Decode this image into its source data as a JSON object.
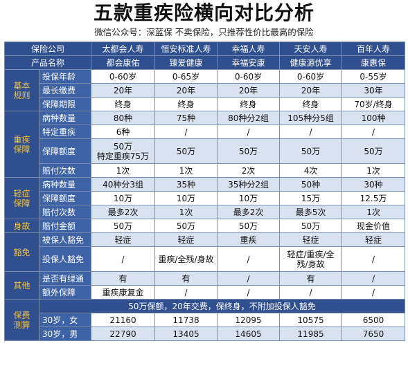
{
  "title": "五款重疾险横向对比分析",
  "subtitle": "微信公众号：深蓝保  不卖保险，只推荐性价比最高的保险",
  "header": {
    "company_label": "保险公司",
    "product_label": "产品名称",
    "companies": [
      "太都会人寿",
      "恒安标准人寿",
      "幸福人寿",
      "天安人寿",
      "百年人寿"
    ],
    "products": [
      "都会康佑",
      "臻爱健康",
      "幸福安康",
      "健康源优享",
      "康惠保"
    ]
  },
  "sections": [
    {
      "category": "基本\n规则",
      "rows": [
        {
          "item": "投保年龄",
          "values": [
            "0-60岁",
            "0-65岁",
            "0-60岁",
            "0-60岁",
            "0-55岁"
          ]
        },
        {
          "item": "最长缴费",
          "values": [
            "20年",
            "20年",
            "20年",
            "20年",
            "30年"
          ]
        },
        {
          "item": "保障期限",
          "values": [
            "终身",
            "终身",
            "终身",
            "终身",
            "70岁/终身"
          ]
        }
      ]
    },
    {
      "category": "重疾\n保障",
      "rows": [
        {
          "item": "病种数量",
          "values": [
            "80种",
            "75种",
            "80种分2组",
            "105种分5组",
            "100种"
          ]
        },
        {
          "item": "特定重疾",
          "values": [
            "6种",
            "/",
            "/",
            "/",
            "/"
          ]
        },
        {
          "item": "保障额度",
          "values": [
            "50万\n特定重疾75万",
            "50万",
            "50万",
            "50万",
            "50万"
          ]
        },
        {
          "item": "赔付次数",
          "values": [
            "1次",
            "1次",
            "2次",
            "4次",
            "1次"
          ]
        }
      ]
    },
    {
      "category": "轻症\n保障",
      "rows": [
        {
          "item": "病种数量",
          "values": [
            "40种分3组",
            "35种",
            "35种分2组",
            "50种",
            "30种"
          ]
        },
        {
          "item": "保障额度",
          "values": [
            "10万",
            "10万",
            "10万",
            "15万",
            "12.5万"
          ]
        },
        {
          "item": "赔付次数",
          "values": [
            "最多2次",
            "1次",
            "最多2次",
            "最多5次",
            "1次"
          ]
        }
      ]
    },
    {
      "category": "身故",
      "rows": [
        {
          "item": "赔付金额",
          "values": [
            "50万",
            "50万",
            "50万",
            "50万",
            "现金价值"
          ]
        }
      ]
    },
    {
      "category": "豁免",
      "rows": [
        {
          "item": "被保人豁免",
          "values": [
            "轻症",
            "轻症",
            "重疾",
            "轻症",
            "轻症"
          ]
        },
        {
          "item": "投保人豁免",
          "values": [
            "/",
            "重疾/全残/身故",
            "/",
            "轻症/重疾/全\n残/身故",
            "/"
          ]
        }
      ]
    },
    {
      "category": "其他",
      "rows": [
        {
          "item": "是否有绿通",
          "values": [
            "有",
            "有",
            "/",
            "有",
            "/"
          ]
        },
        {
          "item": "额外保障",
          "values": [
            "重疾康复金",
            "/",
            "/",
            "/",
            "/"
          ]
        }
      ]
    }
  ],
  "premium": {
    "category": "保费\n测算",
    "note": "50万保额，20年交费，保终身，不附加投保人豁免",
    "rows": [
      {
        "item": "30岁，女",
        "values": [
          "21160",
          "11738",
          "12095",
          "10575",
          "6500"
        ]
      },
      {
        "item": "30岁，男",
        "values": [
          "22790",
          "13405",
          "14605",
          "11985",
          "7650"
        ]
      }
    ]
  },
  "colors": {
    "header_bg": "#2f4f8f",
    "category_text": "#f0c040",
    "item_bg": "#3d62a6",
    "alt_row_bg": "#d9e2f1"
  }
}
